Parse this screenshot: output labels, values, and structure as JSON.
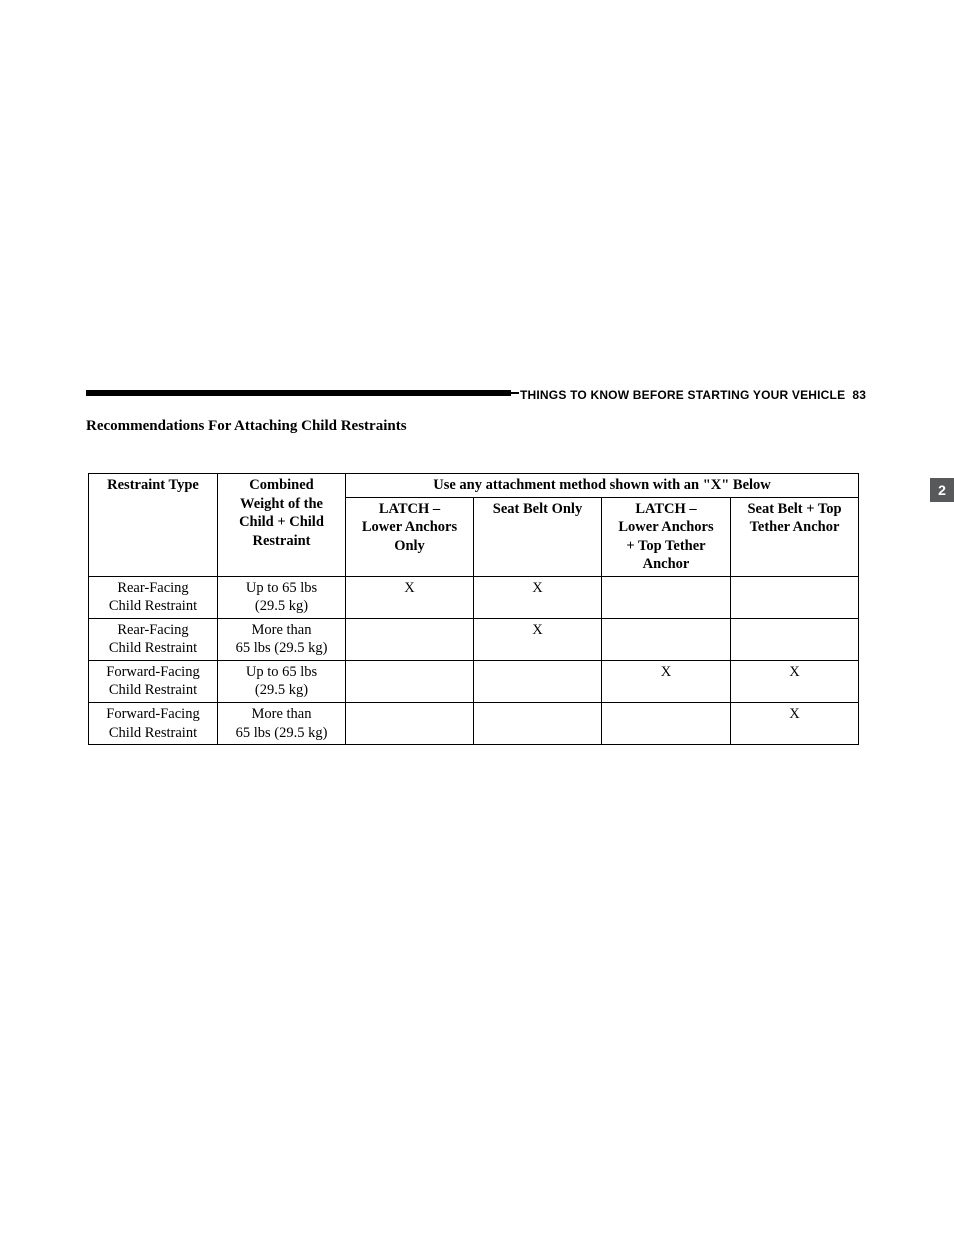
{
  "header": {
    "section": "THINGS TO KNOW BEFORE STARTING YOUR VEHICLE",
    "page_number": "83"
  },
  "side_tab": "2",
  "section_title": "Recommendations For Attaching Child Restraints",
  "table": {
    "head": {
      "restraint_type": "Restraint Type",
      "combined_weight_l1": "Combined",
      "combined_weight_l2": "Weight of the",
      "combined_weight_l3": "Child + Child",
      "combined_weight_l4": "Restraint",
      "methods_span": "Use any attachment method shown with an \"X\" Below",
      "m1_l1": "LATCH –",
      "m1_l2": "Lower Anchors",
      "m1_l3": "Only",
      "m2_l1": "Seat Belt Only",
      "m3_l1": "LATCH –",
      "m3_l2": "Lower Anchors",
      "m3_l3": "+ Top Tether",
      "m3_l4": "Anchor",
      "m4_l1": "Seat Belt + Top",
      "m4_l2": "Tether Anchor"
    },
    "rows": [
      {
        "rt_l1": "Rear-Facing",
        "rt_l2": "Child Restraint",
        "wt_l1": "Up to 65 lbs",
        "wt_l2": "(29.5 kg)",
        "m1": "X",
        "m2": "X",
        "m3": "",
        "m4": ""
      },
      {
        "rt_l1": "Rear-Facing",
        "rt_l2": "Child Restraint",
        "wt_l1": "More than",
        "wt_l2": "65 lbs (29.5 kg)",
        "m1": "",
        "m2": "X",
        "m3": "",
        "m4": ""
      },
      {
        "rt_l1": "Forward-Facing",
        "rt_l2": "Child Restraint",
        "wt_l1": "Up to 65 lbs",
        "wt_l2": "(29.5 kg)",
        "m1": "",
        "m2": "",
        "m3": "X",
        "m4": "X"
      },
      {
        "rt_l1": "Forward-Facing",
        "rt_l2": "Child Restraint",
        "wt_l1": "More than",
        "wt_l2": "65 lbs (29.5 kg)",
        "m1": "",
        "m2": "",
        "m3": "",
        "m4": "X"
      }
    ]
  }
}
